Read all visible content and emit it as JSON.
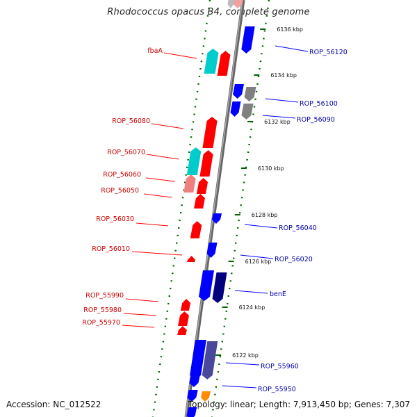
{
  "header": {
    "title": "Rhodococcus opacus B4, complete genome"
  },
  "footer": {
    "accession": "Accession: NC_012522",
    "summary": "Topology: linear; Length: 7,913,450 bp; Genes: 7,307"
  },
  "colors": {
    "forward": "#ff0000",
    "reverse": "#0000ff",
    "navy": "#000080",
    "cyan": "#00cccc",
    "pink": "#f08080",
    "gray": "#808080",
    "orange": "#ff8c00",
    "slate": "#48489c",
    "tick": "#006400"
  },
  "scale_labels": [
    "6136 kbp",
    "6134 kbp",
    "6132 kbp",
    "6130 kbp",
    "6128 kbp",
    "6126 kbp",
    "6124 kbp",
    "6122 kbp"
  ],
  "left_labels": [
    "fbaA",
    "ROP_56080",
    "ROP_56070",
    "ROP_56060",
    "ROP_56050",
    "ROP_56030",
    "ROP_56010",
    "ROP_55990",
    "ROP_55980",
    "ROP_55970"
  ],
  "right_labels": [
    "ROP_56120",
    "ROP_56100",
    "ROP_56090",
    "ROP_56040",
    "ROP_56020",
    "benE",
    "ROP_55960",
    "ROP_55950"
  ]
}
